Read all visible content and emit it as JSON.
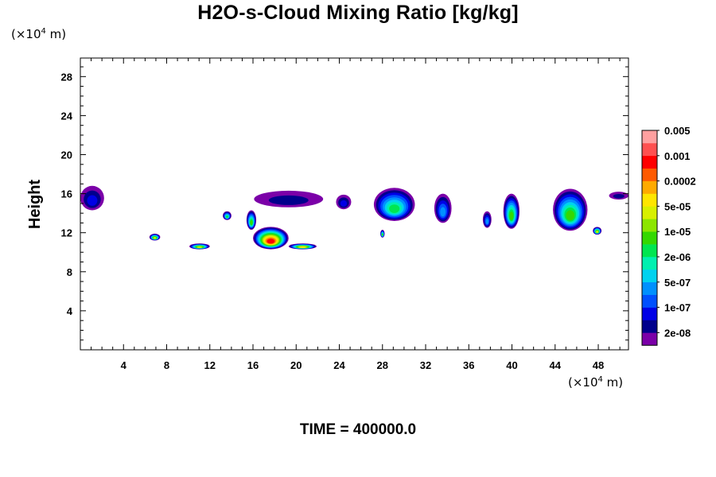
{
  "chart_data": {
    "type": "heatmap",
    "title": "H2O-s-Cloud Mixing Ratio [kg/kg]",
    "xlabel": "",
    "ylabel": "Height",
    "x_unit_prefix": "(×10",
    "x_unit_exp": "4",
    "x_unit_suffix": " m)",
    "y_unit_prefix": "(×10",
    "y_unit_exp": "4",
    "y_unit_suffix": " m)",
    "xlim": [
      0,
      50.8
    ],
    "ylim": [
      0,
      29.9
    ],
    "xticks": [
      4,
      8,
      12,
      16,
      20,
      24,
      28,
      32,
      36,
      40,
      44,
      48
    ],
    "xtick_labels": [
      "4",
      "8",
      "12",
      "16",
      "20",
      "24",
      "28",
      "32",
      "36",
      "40",
      "44",
      "48"
    ],
    "yticks": [
      4,
      8,
      12,
      16,
      20,
      24,
      28
    ],
    "ytick_labels": [
      "4",
      "8",
      "12",
      "16",
      "20",
      "24",
      "28"
    ],
    "grid": false,
    "colorbar": {
      "colors": [
        "#7b00a8",
        "#00008c",
        "#0000e6",
        "#0050ff",
        "#0090ff",
        "#00d2f0",
        "#00f0b0",
        "#00e650",
        "#34d800",
        "#8ce600",
        "#d8f000",
        "#ffe600",
        "#ffaa00",
        "#ff5a00",
        "#ff0000",
        "#ff5050",
        "#ffa0a0"
      ],
      "labels": [
        "2e-08",
        "1e-07",
        "5e-07",
        "2e-06",
        "1e-05",
        "5e-05",
        "0.0002",
        "0.001",
        "0.005"
      ]
    },
    "cloud_patches": [
      {
        "x": [
          0.0,
          2.2
        ],
        "y": [
          14.3,
          16.8
        ],
        "peak": "1e-07"
      },
      {
        "x": [
          6.4,
          7.4
        ],
        "y": [
          11.2,
          11.9
        ],
        "peak": "5e-05"
      },
      {
        "x": [
          10.1,
          12.0
        ],
        "y": [
          10.3,
          10.9
        ],
        "peak": "5e-05"
      },
      {
        "x": [
          13.2,
          14.0
        ],
        "y": [
          13.3,
          14.2
        ],
        "peak": "2e-06"
      },
      {
        "x": [
          15.4,
          16.3
        ],
        "y": [
          12.3,
          14.3
        ],
        "peak": "1e-05"
      },
      {
        "x": [
          16.1,
          22.5
        ],
        "y": [
          14.6,
          16.3
        ],
        "peak": "2e-08"
      },
      {
        "x": [
          16.0,
          19.3
        ],
        "y": [
          10.3,
          12.6
        ],
        "peak": "0.001"
      },
      {
        "x": [
          19.3,
          21.9
        ],
        "y": [
          10.3,
          10.9
        ],
        "peak": "0.0002"
      },
      {
        "x": [
          23.7,
          25.1
        ],
        "y": [
          14.4,
          15.9
        ],
        "peak": "1e-07"
      },
      {
        "x": [
          27.2,
          31.0
        ],
        "y": [
          13.2,
          16.6
        ],
        "peak": "2e-06"
      },
      {
        "x": [
          27.8,
          28.2
        ],
        "y": [
          11.5,
          12.3
        ],
        "peak": "1e-05"
      },
      {
        "x": [
          32.8,
          34.4
        ],
        "y": [
          13.0,
          16.0
        ],
        "peak": "5e-07"
      },
      {
        "x": [
          37.3,
          38.1
        ],
        "y": [
          12.5,
          14.2
        ],
        "peak": "5e-07"
      },
      {
        "x": [
          39.2,
          40.7
        ],
        "y": [
          12.4,
          16.0
        ],
        "peak": "1e-05"
      },
      {
        "x": [
          43.8,
          47.0
        ],
        "y": [
          12.2,
          16.5
        ],
        "peak": "1e-05"
      },
      {
        "x": [
          47.5,
          48.3
        ],
        "y": [
          11.8,
          12.6
        ],
        "peak": "5e-05"
      },
      {
        "x": [
          49.0,
          50.8
        ],
        "y": [
          15.4,
          16.2
        ],
        "peak": "2e-08"
      }
    ]
  },
  "time_label": "TIME = 400000.0"
}
